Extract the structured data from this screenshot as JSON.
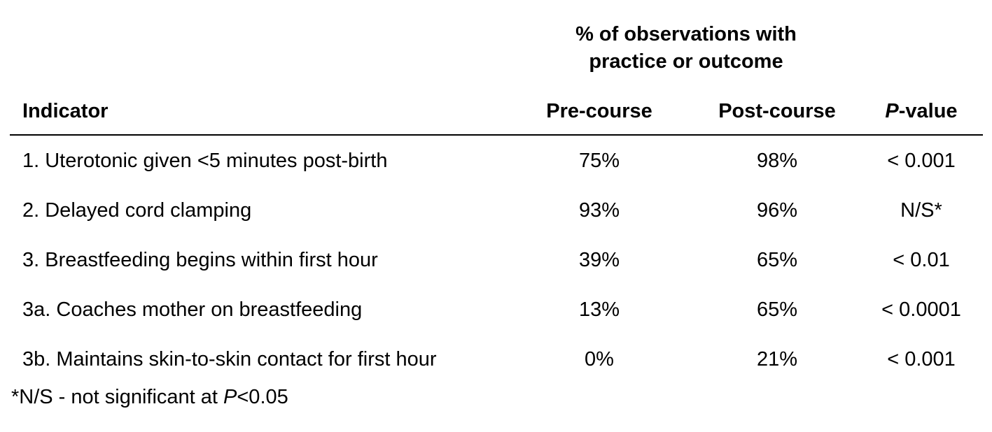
{
  "table": {
    "group_header": {
      "line1": "% of observations with",
      "line2": "practice or outcome"
    },
    "columns": {
      "indicator": "Indicator",
      "pre": "Pre-course",
      "post": "Post-course",
      "pvalue_italic": "P",
      "pvalue_rest": "-value"
    },
    "rows": [
      {
        "indicator": "1. Uterotonic given <5 minutes post-birth",
        "pre": "75%",
        "post": "98%",
        "pvalue": "< 0.001"
      },
      {
        "indicator": "2. Delayed cord clamping",
        "pre": "93%",
        "post": "96%",
        "pvalue": "N/S*"
      },
      {
        "indicator": "3. Breastfeeding begins within first hour",
        "pre": "39%",
        "post": "65%",
        "pvalue": "< 0.01"
      },
      {
        "indicator": "3a. Coaches mother on breastfeeding",
        "pre": "13%",
        "post": "65%",
        "pvalue": "< 0.0001"
      },
      {
        "indicator": "3b. Maintains skin-to-skin contact for first hour",
        "pre": "0%",
        "post": "21%",
        "pvalue": "< 0.001"
      }
    ],
    "footnote": {
      "before": "*N/S - not significant at ",
      "italic": "P",
      "after": "<0.05"
    }
  }
}
